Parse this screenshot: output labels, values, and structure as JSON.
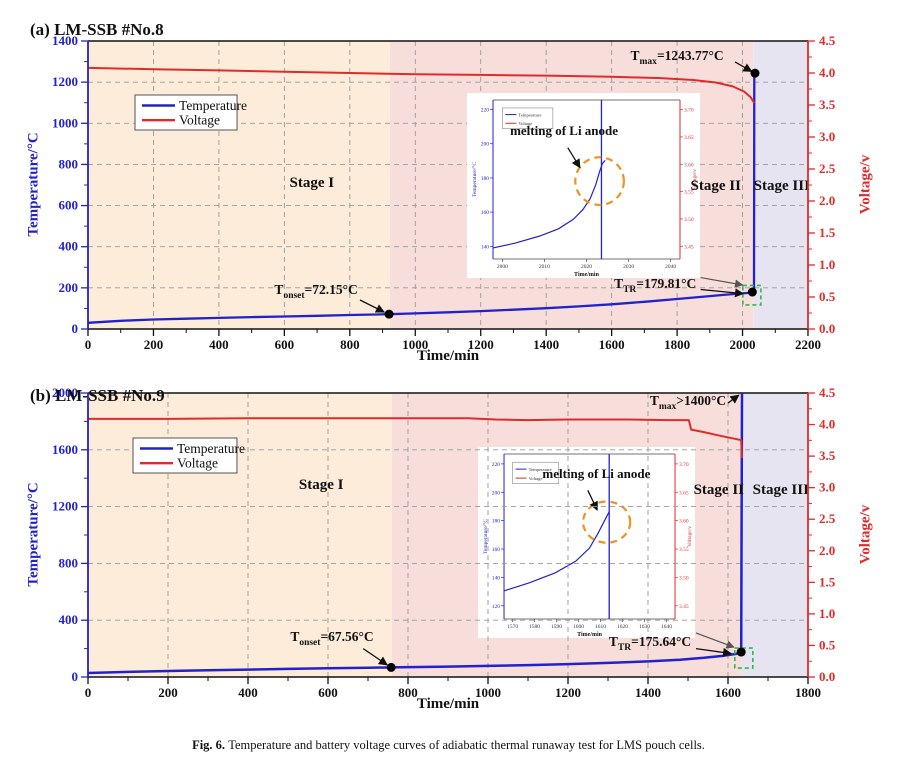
{
  "caption": {
    "label": "Fig. 6.",
    "text": "Temperature and battery voltage curves of adiabatic thermal runaway test for LMS pouch cells."
  },
  "colors": {
    "temperature": "#2222cc",
    "voltage": "#e02b2b",
    "grid": "#999999",
    "axis_black": "#111111",
    "highlight_box": "#2db84d",
    "ellipse_orange": "#f0921e",
    "connector_gray": "#555555",
    "dot": "#000000",
    "stage1": "#fcecd9",
    "stage2": "#f8dedb",
    "stage3": "#e7e4f1"
  },
  "legend": {
    "items": [
      {
        "label": "Temperature",
        "color": "temperature"
      },
      {
        "label": "Voltage",
        "color": "voltage"
      }
    ]
  },
  "chart_data": [
    {
      "type": "line",
      "title": "(a) LM-SSB #No.8",
      "x_axis": {
        "label": "Time/min",
        "min": 0,
        "max": 2200,
        "step": 200
      },
      "y_left": {
        "label": "Temperature/°C",
        "min": 0,
        "max": 1400,
        "step": 200
      },
      "y_right": {
        "label": "Voltage/v",
        "min": 0,
        "max": 4.5,
        "step": 0.5
      },
      "grid": true,
      "legend_pos": {
        "fx": 0.0653,
        "fy": 0.1875,
        "fw": 0.1417,
        "fh": 0.1215
      },
      "stages": [
        {
          "label": "Stage I",
          "from": 0,
          "to": 922,
          "color_key": "stage1",
          "label_x": 684,
          "label_t": 690
        },
        {
          "label": "Stage II",
          "from": 922,
          "to": 2033,
          "color_key": "stage2",
          "label_x": 1918,
          "label_t": 676
        },
        {
          "label": "Stage III",
          "from": 2033,
          "to": 2200,
          "color_key": "stage3",
          "label_x": 2120,
          "label_t": 676
        }
      ],
      "series": [
        {
          "name": "Temperature",
          "color_key": "temperature",
          "width": 2.3,
          "points": [
            [
              0,
              30
            ],
            [
              100,
              40
            ],
            [
              200,
              46
            ],
            [
              300,
              50
            ],
            [
              400,
              54
            ],
            [
              500,
              58
            ],
            [
              600,
              61
            ],
            [
              700,
              64
            ],
            [
              800,
              68
            ],
            [
              920,
              72.15
            ],
            [
              1000,
              76
            ],
            [
              1100,
              81
            ],
            [
              1200,
              87
            ],
            [
              1300,
              94
            ],
            [
              1400,
              101
            ],
            [
              1500,
              110
            ],
            [
              1600,
              120
            ],
            [
              1700,
              132
            ],
            [
              1800,
              146
            ],
            [
              1900,
              160
            ],
            [
              1950,
              167
            ],
            [
              2000,
              173
            ],
            [
              2020,
              176
            ],
            [
              2032,
              179.81
            ],
            [
              2035,
              190
            ],
            [
              2036,
              1243.77
            ]
          ]
        },
        {
          "name": "Voltage",
          "color_key": "voltage",
          "width": 2.0,
          "points": [
            [
              0,
              4.08
            ],
            [
              200,
              4.06
            ],
            [
              400,
              4.04
            ],
            [
              600,
              4.02
            ],
            [
              800,
              4.0
            ],
            [
              1000,
              3.98
            ],
            [
              1200,
              3.97
            ],
            [
              1400,
              3.96
            ],
            [
              1600,
              3.94
            ],
            [
              1750,
              3.92
            ],
            [
              1850,
              3.89
            ],
            [
              1920,
              3.85
            ],
            [
              1970,
              3.79
            ],
            [
              2005,
              3.71
            ],
            [
              2025,
              3.62
            ],
            [
              2036,
              3.53
            ]
          ]
        }
      ],
      "annotations": [
        {
          "base": "T",
          "sub": "max",
          "rest": "=1243.77°C",
          "label": [
            1800,
            1308
          ],
          "arrow": [
            [
              1977,
              1298
            ],
            [
              2028,
              1252
            ]
          ],
          "dot": [
            2038,
            1243.77
          ]
        },
        {
          "base": "T",
          "sub": "onset",
          "rest": "=72.15°C",
          "label": [
            697,
            170
          ],
          "arrow": [
            [
              831,
              141
            ],
            [
              905,
              82
            ]
          ],
          "dot": [
            920,
            72.15
          ]
        },
        {
          "base": "T",
          "sub": "TR",
          "rest": "=179.81°C",
          "label": [
            1733,
            199
          ],
          "arrow": [
            [
              1872,
              192
            ],
            [
              2002,
              172
            ]
          ],
          "dot": [
            2030,
            179.81
          ],
          "box": {
            "x1": 2001,
            "x2": 2056,
            "t1": 117,
            "t2": 212
          }
        }
      ],
      "connector": {
        "from": [
          1872,
          250
        ],
        "to": [
          2000,
          214
        ]
      },
      "inset": {
        "under_grid": false,
        "pos": {
          "fx": 0.5264,
          "fy": 0.1806,
          "fw": 0.3236,
          "fh": 0.6424
        },
        "x_label": "Time/min",
        "x_ticks": [
          "2000",
          "2010",
          "2020",
          "2030",
          "2040"
        ],
        "y_label": "Temperature/°C",
        "y_ticks": [
          "220",
          "200",
          "180",
          "160",
          "140"
        ],
        "r_label": "Voltage/v",
        "r_ticks": [
          "3.70",
          "3.65",
          "3.60",
          "3.55",
          "3.50",
          "3.45"
        ],
        "legend": [
          "Temperature",
          "Voltage"
        ],
        "note": "melting of Li anode",
        "note_pos": {
          "fx": 0.38,
          "fy": 0.78
        },
        "note_arrow": {
          "from": [
            0.4,
            0.7
          ],
          "to": [
            0.465,
            0.575
          ]
        },
        "ellipse": {
          "fx": 0.57,
          "fy": 0.49,
          "rx": 0.13,
          "ry": 0.15
        },
        "vline_fx": 0.58,
        "curve": [
          [
            0,
            0.07
          ],
          [
            0.12,
            0.1
          ],
          [
            0.25,
            0.145
          ],
          [
            0.35,
            0.19
          ],
          [
            0.43,
            0.25
          ],
          [
            0.48,
            0.31
          ],
          [
            0.52,
            0.38
          ],
          [
            0.55,
            0.47
          ],
          [
            0.57,
            0.55
          ],
          [
            0.585,
            0.6
          ],
          [
            0.6,
            0.62
          ]
        ]
      }
    },
    {
      "type": "line",
      "title": "(b) LM-SSB #No.9",
      "x_axis": {
        "label": "Time/min",
        "min": 0,
        "max": 1800,
        "step": 200
      },
      "y_left": {
        "label": "Temperature/°C",
        "min": 0,
        "max": 2000,
        "step": 400
      },
      "y_right": {
        "label": "Voltage/v",
        "min": 0,
        "max": 4.5,
        "step": 0.5
      },
      "grid": true,
      "legend_pos": {
        "fx": 0.0625,
        "fy": 0.1585,
        "fw": 0.1444,
        "fh": 0.1232
      },
      "stages": [
        {
          "label": "Stage I",
          "from": 0,
          "to": 760,
          "color_key": "stage1",
          "label_x": 583,
          "label_t": 1324
        },
        {
          "label": "Stage II",
          "from": 760,
          "to": 1634,
          "color_key": "stage2",
          "label_x": 1577,
          "label_t": 1289
        },
        {
          "label": "Stage III",
          "from": 1634,
          "to": 1800,
          "color_key": "stage3",
          "label_x": 1732,
          "label_t": 1289
        }
      ],
      "series": [
        {
          "name": "Temperature",
          "color_key": "temperature",
          "width": 2.5,
          "points": [
            [
              0,
              28
            ],
            [
              100,
              36
            ],
            [
              200,
              42
            ],
            [
              300,
              47
            ],
            [
              400,
              52
            ],
            [
              500,
              57
            ],
            [
              600,
              61
            ],
            [
              700,
              65
            ],
            [
              758,
              67.56
            ],
            [
              900,
              73
            ],
            [
              1000,
              78
            ],
            [
              1100,
              84
            ],
            [
              1200,
              91
            ],
            [
              1300,
              99
            ],
            [
              1400,
              110
            ],
            [
              1480,
              122
            ],
            [
              1540,
              135
            ],
            [
              1590,
              150
            ],
            [
              1620,
              163
            ],
            [
              1630,
              170
            ],
            [
              1633,
              175.64
            ],
            [
              1635,
              1995
            ]
          ]
        },
        {
          "name": "Voltage",
          "color_key": "voltage",
          "width": 2.0,
          "points": [
            [
              0,
              4.09
            ],
            [
              200,
              4.09
            ],
            [
              400,
              4.1
            ],
            [
              600,
              4.1
            ],
            [
              800,
              4.1
            ],
            [
              950,
              4.1
            ],
            [
              1020,
              4.08
            ],
            [
              1100,
              4.07
            ],
            [
              1200,
              4.08
            ],
            [
              1350,
              4.08
            ],
            [
              1450,
              4.07
            ],
            [
              1502,
              4.07
            ],
            [
              1508,
              3.92
            ],
            [
              1540,
              3.88
            ],
            [
              1575,
              3.83
            ],
            [
              1605,
              3.79
            ],
            [
              1628,
              3.76
            ],
            [
              1633,
              3.75
            ],
            [
              1635,
              3.47
            ]
          ]
        }
      ],
      "annotations": [
        {
          "base": "T",
          "sub": "max",
          "rest": ">1400°C",
          "label": [
            1500,
            1915
          ],
          "arrow": [
            [
              1600,
              1929
            ],
            [
              1627,
              1985
            ]
          ],
          "dot": null
        },
        {
          "base": "T",
          "sub": "onset",
          "rest": "=67.56°C",
          "label": [
            610,
            254
          ],
          "arrow": [
            [
              688,
              200
            ],
            [
              748,
              85
            ]
          ],
          "dot": [
            758,
            67.56
          ]
        },
        {
          "base": "T",
          "sub": "TR",
          "rest": "=175.64°C",
          "label": [
            1405,
            218
          ],
          "arrow": [
            [
              1520,
              200
            ],
            [
              1608,
              165
            ]
          ],
          "dot": [
            1633,
            175.64
          ],
          "box": {
            "x1": 1617,
            "x2": 1662,
            "t1": 63,
            "t2": 204
          }
        }
      ],
      "connector": {
        "from": [
          1520,
          310
        ],
        "to": [
          1615,
          210
        ]
      },
      "inset": {
        "under_grid": true,
        "pos": {
          "fx": 0.5417,
          "fy": 0.1901,
          "fw": 0.3014,
          "fh": 0.6725
        },
        "x_label": "Time/min",
        "x_ticks": [
          "1570",
          "1580",
          "1590",
          "1600",
          "1610",
          "1620",
          "1630",
          "1640"
        ],
        "y_label": "Temperature/°C",
        "y_ticks": [
          "220",
          "200",
          "180",
          "160",
          "140",
          "120"
        ],
        "r_label": "Voltage/v",
        "r_ticks": [
          "3.70",
          "3.65",
          "3.60",
          "3.55",
          "3.50",
          "3.45"
        ],
        "legend": [
          "Temperature",
          "Voltage"
        ],
        "note": "melting of Li anode",
        "note_pos": {
          "fx": 0.54,
          "fy": 0.855
        },
        "note_arrow": {
          "from": [
            0.49,
            0.78
          ],
          "to": [
            0.545,
            0.66
          ]
        },
        "ellipse": {
          "fx": 0.6,
          "fy": 0.587,
          "rx": 0.138,
          "ry": 0.125
        },
        "vline_fx": 0.615,
        "curve": [
          [
            0,
            0.17
          ],
          [
            0.15,
            0.22
          ],
          [
            0.3,
            0.28
          ],
          [
            0.42,
            0.35
          ],
          [
            0.5,
            0.43
          ],
          [
            0.55,
            0.52
          ],
          [
            0.58,
            0.58
          ],
          [
            0.6,
            0.62
          ],
          [
            0.615,
            0.65
          ]
        ]
      }
    }
  ]
}
